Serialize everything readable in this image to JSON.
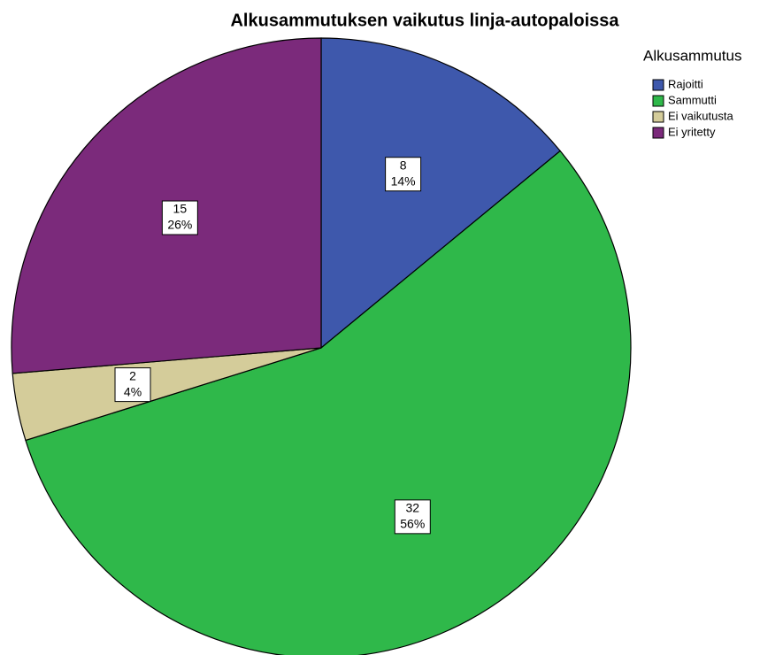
{
  "chart_data": {
    "type": "pie",
    "title": "Alkusammutuksen vaikutus linja-autopaloissa",
    "legend_title": "Alkusammutus",
    "legend": "top-right",
    "categories": [
      "Rajoitti",
      "Sammutti",
      "Ei vaikutusta",
      "Ei yritetty"
    ],
    "values": [
      8,
      32,
      2,
      15
    ],
    "colors": [
      "#3e58ac",
      "#2fb84a",
      "#d4cc9a",
      "#7b2a7b"
    ],
    "percentages": {
      "values": [
        14,
        56,
        4,
        26
      ],
      "value_labels": [
        "14%",
        "56%",
        "4%",
        "26%"
      ]
    }
  }
}
